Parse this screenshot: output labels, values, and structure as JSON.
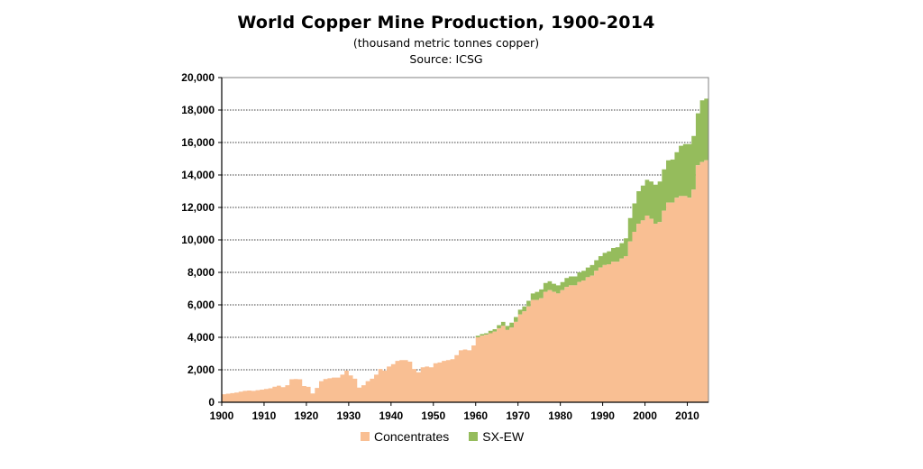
{
  "header": {
    "title": "World Copper Mine Production, 1900-2014",
    "subtitle": "(thousand metric tonnes copper)",
    "source": "Source: ICSG"
  },
  "colors": {
    "concentrates": "#F9BF93",
    "sxew": "#95BC5C",
    "grid": "#000000"
  },
  "chart_data": {
    "type": "area",
    "x": [
      1900,
      1901,
      1902,
      1903,
      1904,
      1905,
      1906,
      1907,
      1908,
      1909,
      1910,
      1911,
      1912,
      1913,
      1914,
      1915,
      1916,
      1917,
      1918,
      1919,
      1920,
      1921,
      1922,
      1923,
      1924,
      1925,
      1926,
      1927,
      1928,
      1929,
      1930,
      1931,
      1932,
      1933,
      1934,
      1935,
      1936,
      1937,
      1938,
      1939,
      1940,
      1941,
      1942,
      1943,
      1944,
      1945,
      1946,
      1947,
      1948,
      1949,
      1950,
      1951,
      1952,
      1953,
      1954,
      1955,
      1956,
      1957,
      1958,
      1959,
      1960,
      1961,
      1962,
      1963,
      1964,
      1965,
      1966,
      1967,
      1968,
      1969,
      1970,
      1971,
      1972,
      1973,
      1974,
      1975,
      1976,
      1977,
      1978,
      1979,
      1980,
      1981,
      1982,
      1983,
      1984,
      1985,
      1986,
      1987,
      1988,
      1989,
      1990,
      1991,
      1992,
      1993,
      1994,
      1995,
      1996,
      1997,
      1998,
      1999,
      2000,
      2001,
      2002,
      2003,
      2004,
      2005,
      2006,
      2007,
      2008,
      2009,
      2010,
      2011,
      2012,
      2013,
      2014
    ],
    "series": [
      {
        "name": "Concentrates",
        "values": [
          495,
          530,
          560,
          600,
          650,
          700,
          720,
          700,
          740,
          780,
          820,
          860,
          960,
          1020,
          930,
          1050,
          1420,
          1430,
          1420,
          1000,
          950,
          540,
          880,
          1300,
          1430,
          1480,
          1520,
          1520,
          1700,
          1950,
          1650,
          1450,
          900,
          1050,
          1300,
          1450,
          1700,
          2050,
          1950,
          2200,
          2350,
          2550,
          2600,
          2600,
          2500,
          2050,
          1850,
          2150,
          2200,
          2150,
          2400,
          2450,
          2550,
          2600,
          2650,
          2900,
          3200,
          3250,
          3200,
          3500,
          4000,
          4100,
          4150,
          4250,
          4350,
          4550,
          4700,
          4450,
          4600,
          4950,
          5400,
          5600,
          5900,
          6300,
          6300,
          6400,
          6800,
          6900,
          6800,
          6700,
          6900,
          7100,
          7200,
          7200,
          7400,
          7500,
          7700,
          7800,
          8100,
          8300,
          8450,
          8500,
          8650,
          8650,
          8850,
          9000,
          9900,
          10500,
          11000,
          11200,
          11500,
          11300,
          11000,
          11100,
          11800,
          12300,
          12300,
          12600,
          12700,
          12700,
          12600,
          13100,
          14600,
          14800,
          14900
        ]
      },
      {
        "name": "SX-EW",
        "values": [
          0,
          0,
          0,
          0,
          0,
          0,
          0,
          0,
          0,
          0,
          0,
          0,
          0,
          0,
          0,
          0,
          0,
          0,
          0,
          0,
          0,
          0,
          0,
          0,
          0,
          0,
          0,
          0,
          0,
          0,
          0,
          0,
          0,
          0,
          0,
          0,
          0,
          0,
          0,
          0,
          0,
          0,
          0,
          0,
          0,
          0,
          0,
          0,
          0,
          0,
          0,
          0,
          0,
          0,
          0,
          0,
          0,
          0,
          0,
          0,
          100,
          100,
          100,
          150,
          150,
          200,
          250,
          250,
          300,
          300,
          300,
          300,
          350,
          400,
          500,
          550,
          550,
          550,
          500,
          500,
          500,
          550,
          550,
          550,
          600,
          600,
          600,
          650,
          650,
          700,
          750,
          800,
          850,
          900,
          950,
          1100,
          1450,
          1750,
          2000,
          2150,
          2200,
          2300,
          2400,
          2500,
          2550,
          2600,
          2650,
          2800,
          3100,
          3200,
          3300,
          3300,
          3200,
          3800,
          3800
        ]
      }
    ],
    "xlim": [
      1900,
      2015
    ],
    "ylim": [
      0,
      20000
    ],
    "x_ticks": [
      1900,
      1910,
      1920,
      1930,
      1940,
      1950,
      1960,
      1970,
      1980,
      1990,
      2000,
      2010
    ],
    "x_tick_labels": [
      "1900",
      "1910",
      "1920",
      "1930",
      "1940",
      "1950",
      "1960",
      "1970",
      "1980",
      "1990",
      "2000",
      "2010"
    ],
    "y_ticks": [
      0,
      2000,
      4000,
      6000,
      8000,
      10000,
      12000,
      14000,
      16000,
      18000,
      20000
    ],
    "y_tick_labels": [
      "0",
      "2,000",
      "4,000",
      "6,000",
      "8,000",
      "10,000",
      "12,000",
      "14,000",
      "16,000",
      "18,000",
      "20,000"
    ],
    "grid": true,
    "legend": {
      "position": "bottom",
      "entries": [
        "Concentrates",
        "SX-EW"
      ]
    }
  }
}
